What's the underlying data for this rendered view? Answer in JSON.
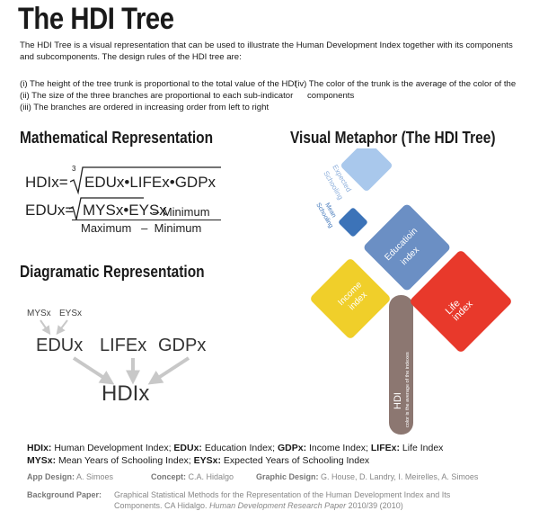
{
  "title": "The HDI Tree",
  "intro": "The HDI Tree is a visual representation that can be used to illustrate the Human Development Index together with its components and subcomponents. The design rules of the HDI tree are:",
  "rules": {
    "r1": "(i) The height of the tree trunk is proportional to the total value of the HDI",
    "r2": "(ii) The size of the three branches are proportional to each sub-indicator",
    "r3": "(iii) The branches are ordered in increasing order from left to right",
    "r4a": "(iv) The color of the trunk is the average of the color of the",
    "r4b": "components"
  },
  "sections": {
    "math": "Mathematical Representation",
    "visual": "Visual Metaphor (The HDI Tree)",
    "diag": "Diagramatic Representation"
  },
  "math": {
    "hdi_lhs": "HDIx=",
    "root_index": "3",
    "hdi_rhs": "EDUx•LIFEx•GDPx",
    "edu_lhs": "EDUx=",
    "edu_rad": "MYSx•EYSx",
    "edu_minus": "– Minimum",
    "denominator": "Maximum   –  Minimum"
  },
  "diagram": {
    "mys": "MYSx",
    "eys": "EYSx",
    "edu": "EDUx",
    "life": "LIFEx",
    "gdp": "GDPx",
    "hdi": "HDIx"
  },
  "tree": {
    "expected": "Expected Schooling",
    "expected_l1": "Expected",
    "expected_l2": "Schooling",
    "mean_l1": "Mean",
    "mean_l2": "Schooling",
    "education_l1": "Educatioin",
    "education_l2": "index",
    "income_l1": "Income",
    "income_l2": "index",
    "life_l1": "Life",
    "life_l2": "index",
    "trunk_label": "HDI",
    "trunk_sub": "color is the average of the indexes",
    "colors": {
      "expected": "#a9c8ec",
      "mean": "#3c73b8",
      "education": "#6b8fc4",
      "income": "#f0cf2a",
      "life": "#e8392b",
      "trunk": "#8c7771"
    }
  },
  "legend": {
    "line1": [
      {
        "term": "HDIx:",
        "def": " Human Development Index; "
      },
      {
        "term": "EDUx:",
        "def": " Education Index; "
      },
      {
        "term": "GDPx:",
        "def": " Income Index; "
      },
      {
        "term": "LIFEx:",
        "def": " Life Index"
      }
    ],
    "line2": [
      {
        "term": "MYSx:",
        "def": " Mean Years of Schooling Index; "
      },
      {
        "term": "EYSx:",
        "def": " Expected Years of Schooling Index"
      }
    ]
  },
  "credits": {
    "app_label": "App Design:",
    "app_value": "A. Simoes",
    "concept_label": "Concept:",
    "concept_value": "C.A. Hidalgo",
    "graphic_label": "Graphic Design:",
    "graphic_value": "G. House, D. Landry, I. Meirelles, A. Simoes",
    "paper_label": "Background Paper:",
    "paper_l1": "Graphical Statistical Methods for the Representation of the Human Development Index and Its",
    "paper_l2a": "Components. CA Hidalgo. ",
    "paper_l2b": "Human Development Research Paper",
    "paper_l2c": " 2010/39 (2010)"
  }
}
